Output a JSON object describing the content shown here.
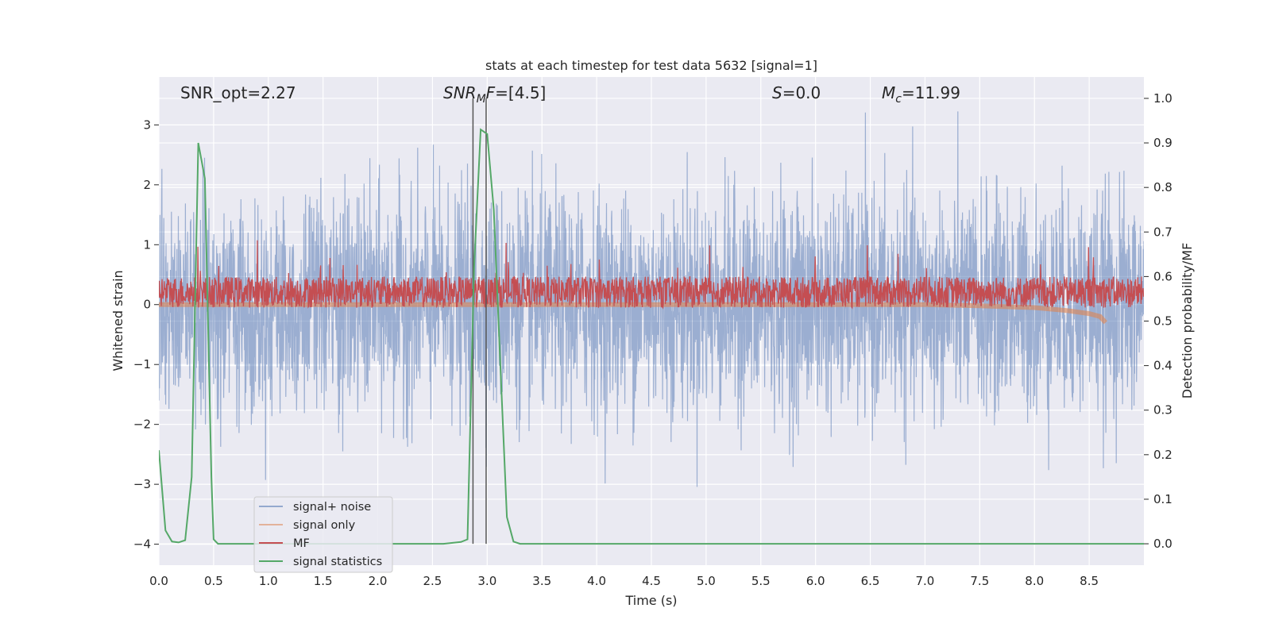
{
  "chart_data": {
    "type": "line",
    "title": "stats at each timestep for test data 5632 [signal=1]",
    "xlabel": "Time (s)",
    "ylabel_left": "Whitened strain",
    "ylabel_right": "Detection probability/MF",
    "xlim": [
      0,
      9.0
    ],
    "ylim_left": [
      -4.35,
      3.8
    ],
    "ylim_right": [
      -0.048,
      1.048
    ],
    "x_ticks": [
      "0.0",
      "0.5",
      "1.0",
      "1.5",
      "2.0",
      "2.5",
      "3.0",
      "3.5",
      "4.0",
      "4.5",
      "5.0",
      "5.5",
      "6.0",
      "6.5",
      "7.0",
      "7.5",
      "8.0",
      "8.5"
    ],
    "y_ticks_left": [
      "3",
      "2",
      "1",
      "0",
      "−1",
      "−2",
      "−3",
      "−4"
    ],
    "y_ticks_right": [
      "1.0",
      "0.9",
      "0.8",
      "0.7",
      "0.6",
      "0.5",
      "0.4",
      "0.3",
      "0.2",
      "0.1",
      "0.0"
    ],
    "grid": true,
    "legend_position": "lower-left",
    "annotations": {
      "snr_opt": "SNR_opt=2.27",
      "snr_mf_prefix": "SNR",
      "snr_mf_sub": "M",
      "snr_mf_mid": "F",
      "snr_mf_suffix": "=[4.5]",
      "s_prefix": "S",
      "s_suffix": "=0.0",
      "mc_prefix": "M",
      "mc_sub": "c",
      "mc_suffix": "=11.99"
    },
    "vertical_lines_x": [
      2.87,
      2.99
    ],
    "series": [
      {
        "name": "signal+ noise",
        "color": "#4c72b0",
        "description_stats": {
          "axis": "left",
          "mean": 0.0,
          "std": 0.9,
          "min": -4.0,
          "max": 3.4
        }
      },
      {
        "name": "signal only",
        "color": "#dd8452",
        "axis": "left",
        "x": [
          0,
          1,
          2,
          3,
          4,
          5,
          6,
          7,
          7.5,
          8,
          8.3,
          8.5,
          8.6,
          8.65
        ],
        "values": [
          0,
          0,
          0,
          0,
          0,
          0,
          0,
          0,
          -0.02,
          -0.05,
          -0.1,
          -0.15,
          -0.2,
          -0.3
        ]
      },
      {
        "name": "MF",
        "color": "#c44e52",
        "description_stats": {
          "axis": "right",
          "baseline": 0.565,
          "band": [
            0.55,
            0.6
          ],
          "peak": 0.68
        }
      },
      {
        "name": "signal statistics",
        "color": "#55a868",
        "axis": "right",
        "x": [
          0.0,
          0.06,
          0.12,
          0.18,
          0.24,
          0.3,
          0.36,
          0.42,
          0.48,
          0.5,
          0.54,
          0.6,
          1.0,
          2.0,
          2.6,
          2.76,
          2.82,
          2.88,
          2.94,
          3.0,
          3.06,
          3.12,
          3.18,
          3.24,
          3.3,
          3.36,
          4.0,
          6.0,
          8.0,
          9.0
        ],
        "values": [
          0.21,
          0.03,
          0.005,
          0.003,
          0.008,
          0.15,
          0.9,
          0.82,
          0.15,
          0.01,
          0.0,
          0.0,
          0.0,
          0.0,
          0.0,
          0.004,
          0.01,
          0.62,
          0.93,
          0.92,
          0.75,
          0.4,
          0.06,
          0.005,
          0.0,
          0.0,
          0.0,
          0.0,
          0.0,
          0.0
        ]
      }
    ]
  }
}
